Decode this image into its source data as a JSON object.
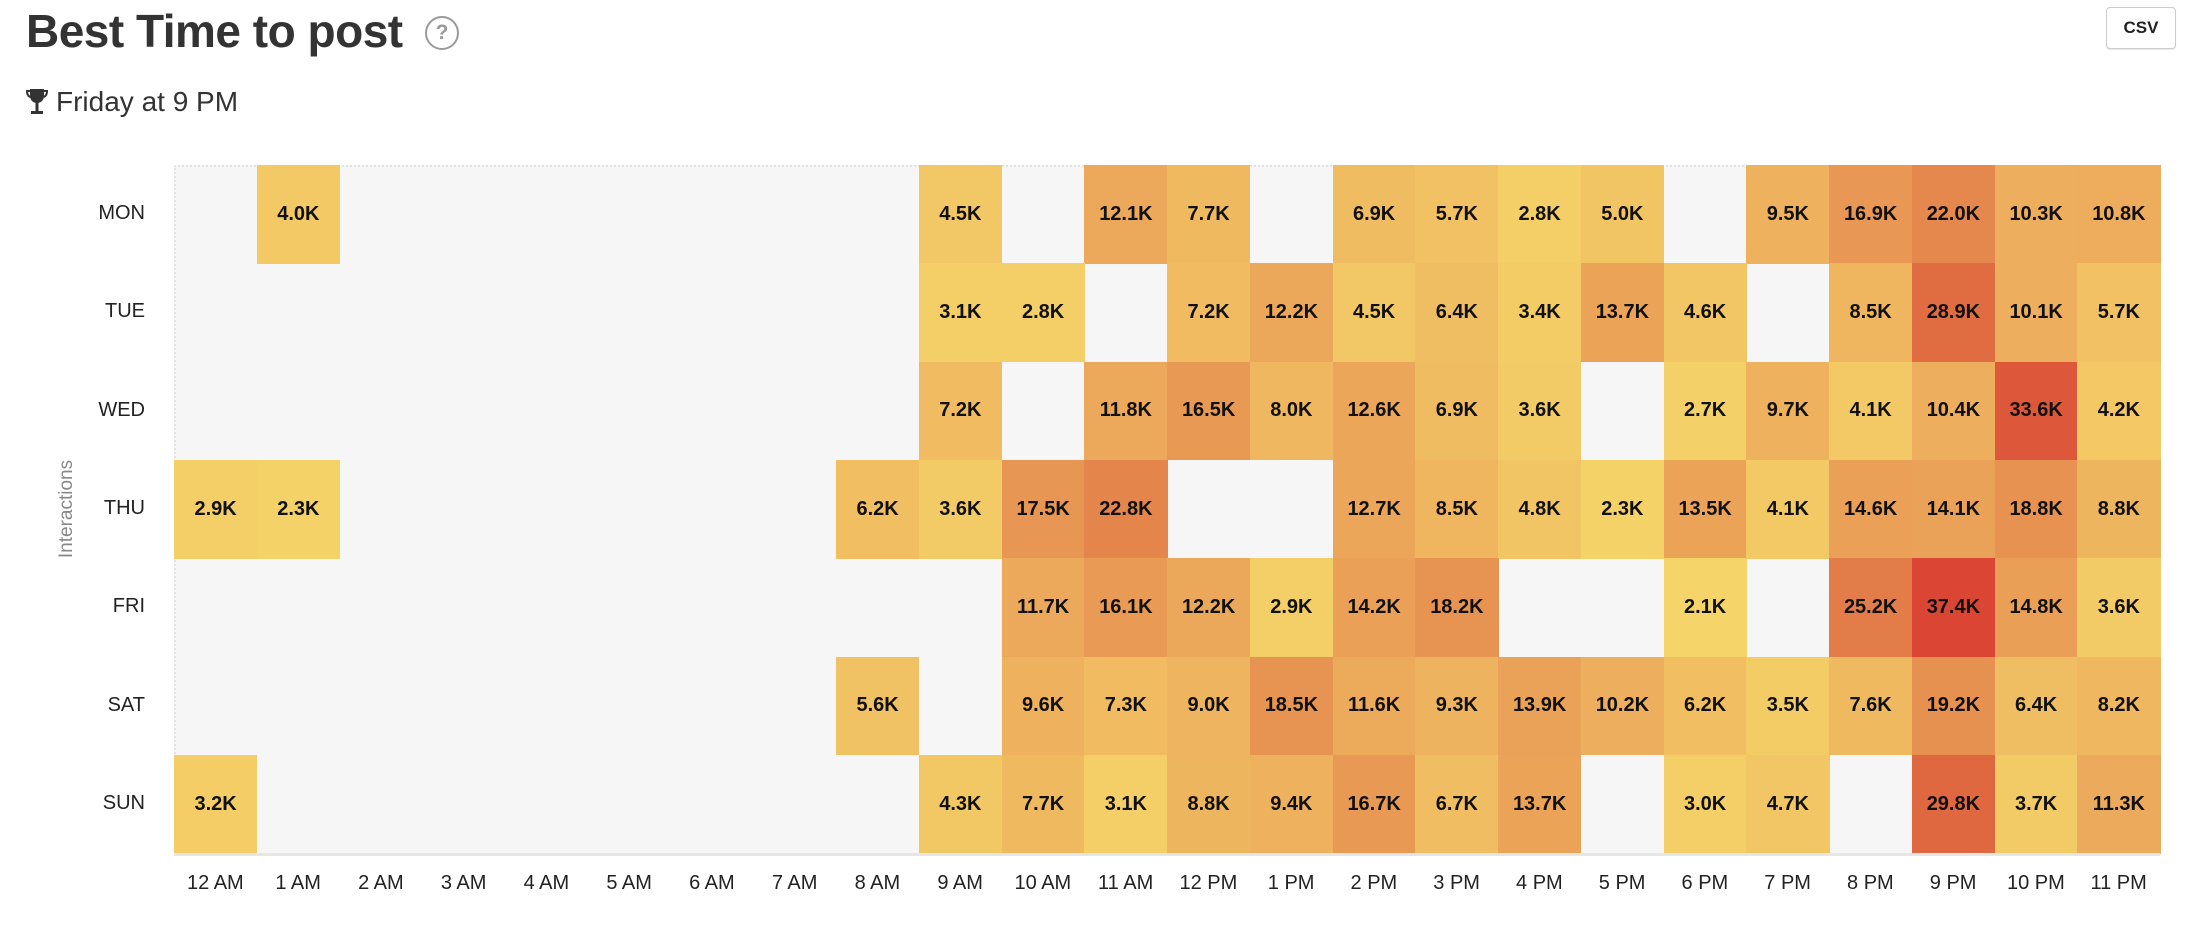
{
  "header": {
    "title": "Best Time to post",
    "help_icon": "?",
    "best_time": "Friday at 9 PM",
    "csv_label": "CSV"
  },
  "chart_data": {
    "type": "heatmap",
    "title": "Best Time to post",
    "ylabel": "Interactions",
    "xlabel": "",
    "value_unit": "thousands of interactions",
    "value_suffix": "K",
    "rows": [
      "MON",
      "TUE",
      "WED",
      "THU",
      "FRI",
      "SAT",
      "SUN"
    ],
    "columns": [
      "12 AM",
      "1 AM",
      "2 AM",
      "3 AM",
      "4 AM",
      "5 AM",
      "6 AM",
      "7 AM",
      "8 AM",
      "9 AM",
      "10 AM",
      "11 AM",
      "12 PM",
      "1 PM",
      "2 PM",
      "3 PM",
      "4 PM",
      "5 PM",
      "6 PM",
      "7 PM",
      "8 PM",
      "9 PM",
      "10 PM",
      "11 PM"
    ],
    "values": [
      [
        null,
        4.0,
        null,
        null,
        null,
        null,
        null,
        null,
        null,
        4.5,
        null,
        12.1,
        7.7,
        null,
        6.9,
        5.7,
        2.8,
        5.0,
        null,
        9.5,
        16.9,
        22.0,
        10.3,
        10.8
      ],
      [
        null,
        null,
        null,
        null,
        null,
        null,
        null,
        null,
        null,
        3.1,
        2.8,
        null,
        7.2,
        12.2,
        4.5,
        6.4,
        3.4,
        13.7,
        4.6,
        null,
        8.5,
        28.9,
        10.1,
        5.7
      ],
      [
        null,
        null,
        null,
        null,
        null,
        null,
        null,
        null,
        null,
        7.2,
        null,
        11.8,
        16.5,
        8.0,
        12.6,
        6.9,
        3.6,
        null,
        2.7,
        9.7,
        4.1,
        10.4,
        33.6,
        4.2
      ],
      [
        2.9,
        2.3,
        null,
        null,
        null,
        null,
        null,
        null,
        6.2,
        3.6,
        17.5,
        22.8,
        null,
        null,
        12.7,
        8.5,
        4.8,
        2.3,
        13.5,
        4.1,
        14.6,
        14.1,
        18.8,
        8.8
      ],
      [
        null,
        null,
        null,
        null,
        null,
        null,
        null,
        null,
        null,
        null,
        11.7,
        16.1,
        12.2,
        2.9,
        14.2,
        18.2,
        null,
        null,
        2.1,
        null,
        25.2,
        37.4,
        14.8,
        3.6
      ],
      [
        null,
        null,
        null,
        null,
        null,
        null,
        null,
        null,
        5.6,
        null,
        9.6,
        7.3,
        9.0,
        18.5,
        11.6,
        9.3,
        13.9,
        10.2,
        6.2,
        3.5,
        7.6,
        19.2,
        6.4,
        8.2
      ],
      [
        3.2,
        null,
        null,
        null,
        null,
        null,
        null,
        null,
        null,
        4.3,
        7.7,
        3.1,
        8.8,
        9.4,
        16.7,
        6.7,
        13.7,
        null,
        3.0,
        4.7,
        null,
        29.8,
        3.7,
        11.3
      ]
    ],
    "color_scale": [
      "#f5d469",
      "#eca95b",
      "#e3824a",
      "#db4634"
    ],
    "empty_color": "#f6f6f6"
  }
}
